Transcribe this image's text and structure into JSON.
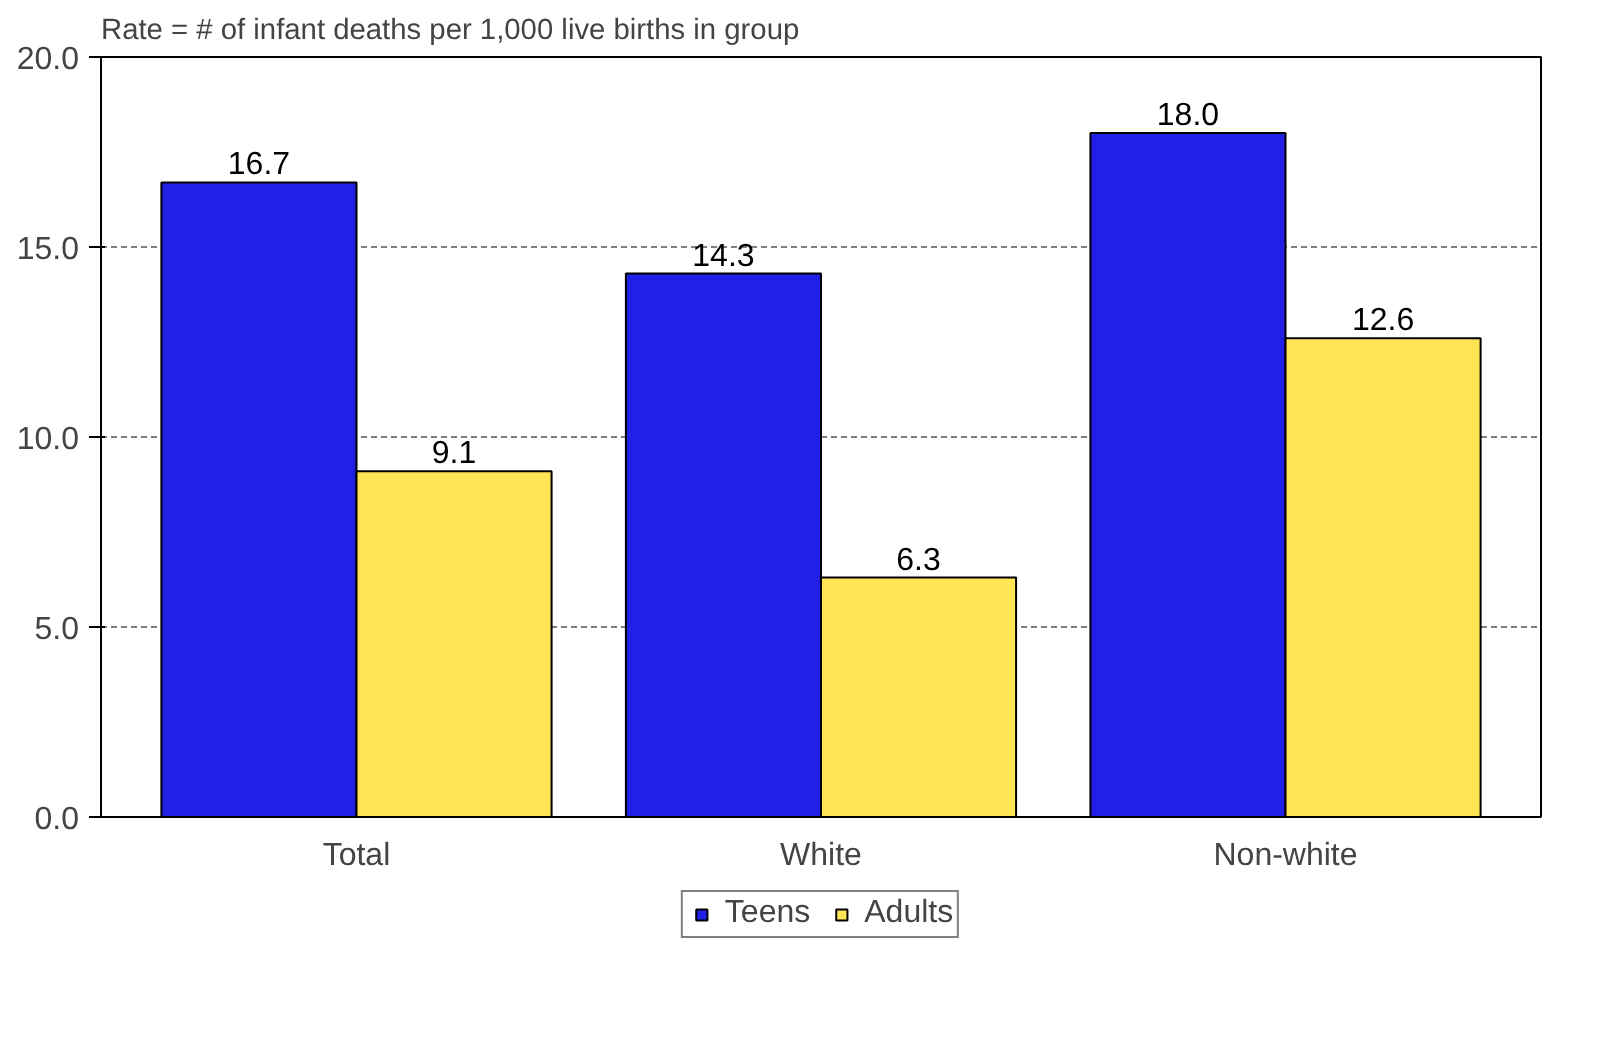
{
  "chart_data": {
    "type": "bar",
    "title": "Rate = # of infant deaths per 1,000 live births in group",
    "categories": [
      "Total",
      "White",
      "Non-white"
    ],
    "series": [
      {
        "name": "Teens",
        "color": "#2020e6",
        "values": [
          16.7,
          14.3,
          18.0
        ],
        "value_labels": [
          "16.7",
          "14.3",
          "18.0"
        ]
      },
      {
        "name": "Adults",
        "color": "#ffe455",
        "values": [
          9.1,
          6.3,
          12.6
        ],
        "value_labels": [
          "9.1",
          "6.3",
          "12.6"
        ]
      }
    ],
    "ylim": [
      0,
      20
    ],
    "yticks": [
      {
        "value": 0,
        "label": "0.0"
      },
      {
        "value": 5,
        "label": "5.0"
      },
      {
        "value": 10,
        "label": "10.0"
      },
      {
        "value": 15,
        "label": "15.0"
      },
      {
        "value": 20,
        "label": "20.0"
      }
    ],
    "grid": "y",
    "legend": "bottom"
  }
}
